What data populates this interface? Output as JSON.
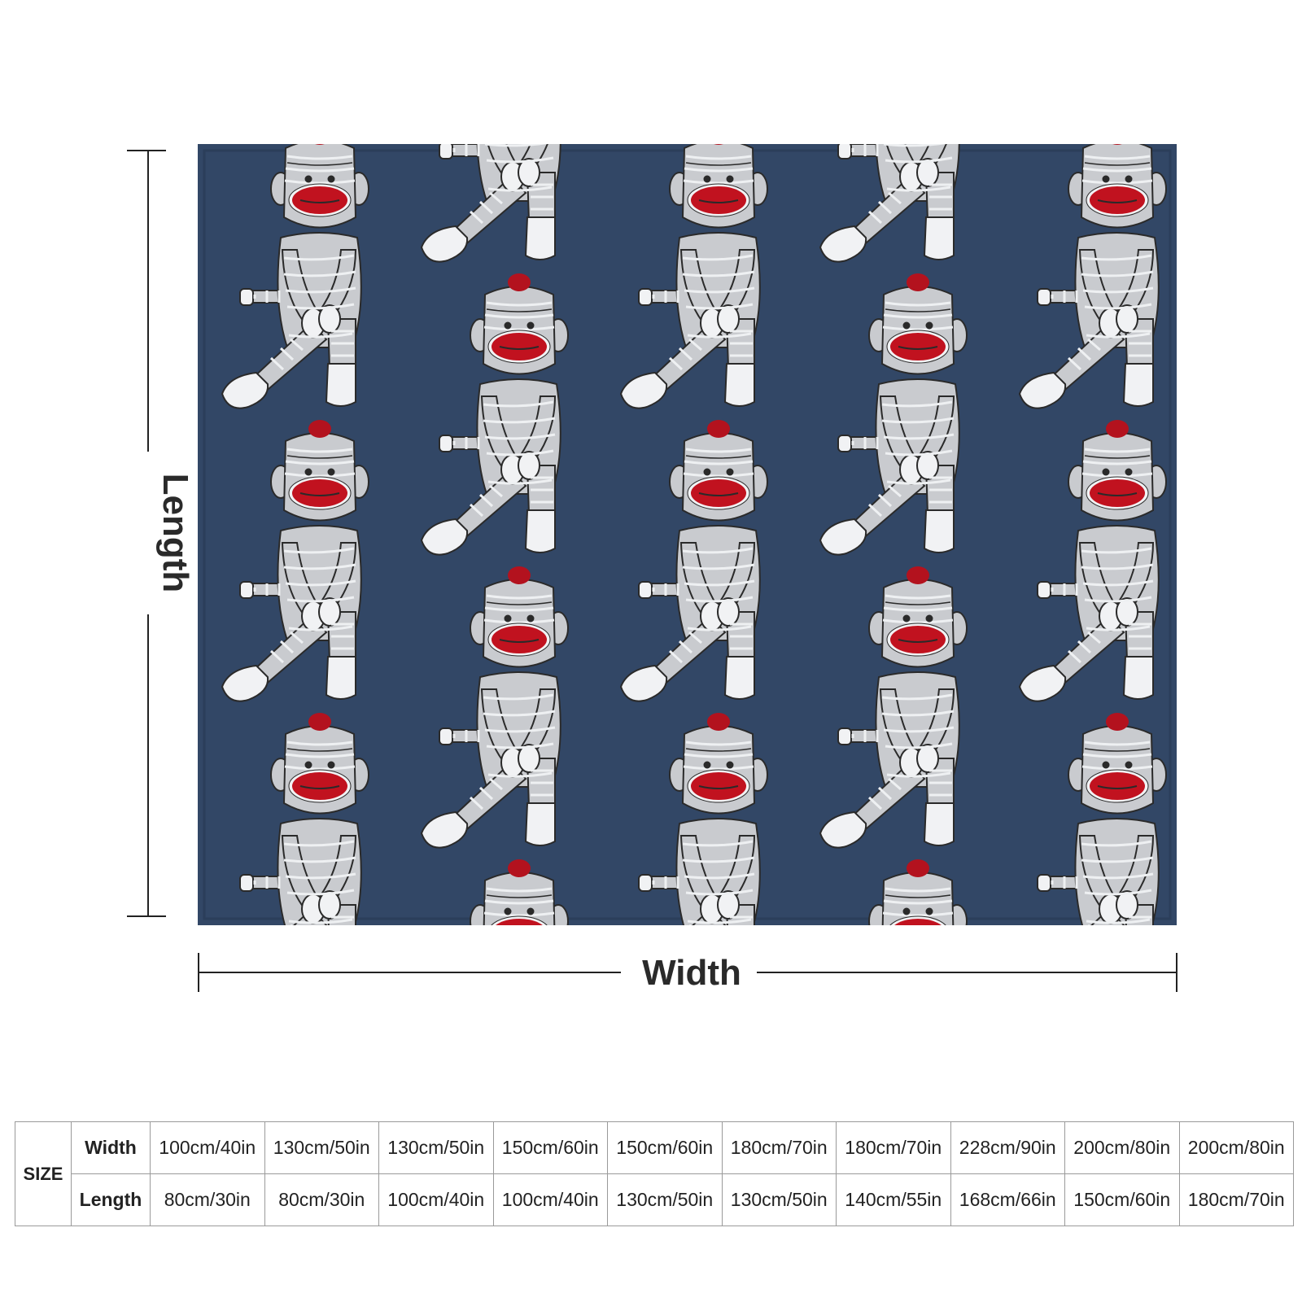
{
  "product": {
    "pattern": "sock-monkey-repeat",
    "colors": {
      "background": "#324766",
      "monkey_body": "#c9cbcf",
      "monkey_stripe": "#eef0f2",
      "monkey_white": "#f1f2f4",
      "mouth": "#c1121f",
      "hat_pompom": "#b3121e",
      "outline": "#2a2a2a"
    }
  },
  "dimensions": {
    "width_label": "Width",
    "length_label": "Length"
  },
  "size_table": {
    "size_label": "SIZE",
    "width_label": "Width",
    "length_label": "Length",
    "widths": [
      "100cm/40in",
      "130cm/50in",
      "130cm/50in",
      "150cm/60in",
      "150cm/60in",
      "180cm/70in",
      "180cm/70in",
      "228cm/90in",
      "200cm/80in",
      "200cm/80in"
    ],
    "lengths": [
      "80cm/30in",
      "80cm/30in",
      "100cm/40in",
      "100cm/40in",
      "130cm/50in",
      "130cm/50in",
      "140cm/55in",
      "168cm/66in",
      "150cm/60in",
      "180cm/70in"
    ]
  }
}
